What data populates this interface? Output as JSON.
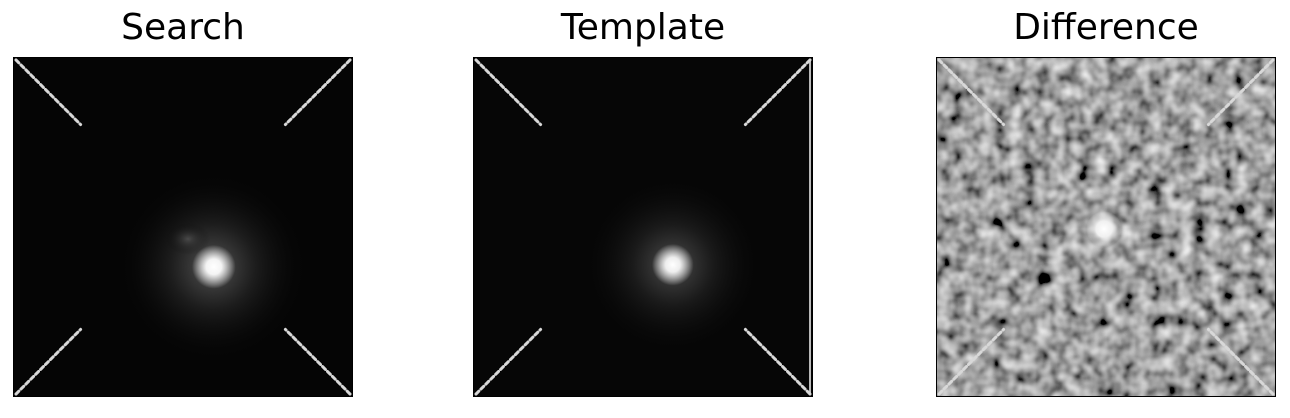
{
  "panels": [
    {
      "id": "search",
      "title": "Search"
    },
    {
      "id": "template",
      "title": "Template"
    },
    {
      "id": "difference",
      "title": "Difference"
    }
  ],
  "colors": {
    "background": "#ffffff",
    "image_dark": "#050505",
    "difference_bg": "#2a2a2a",
    "marker": "#d8d8d8"
  }
}
